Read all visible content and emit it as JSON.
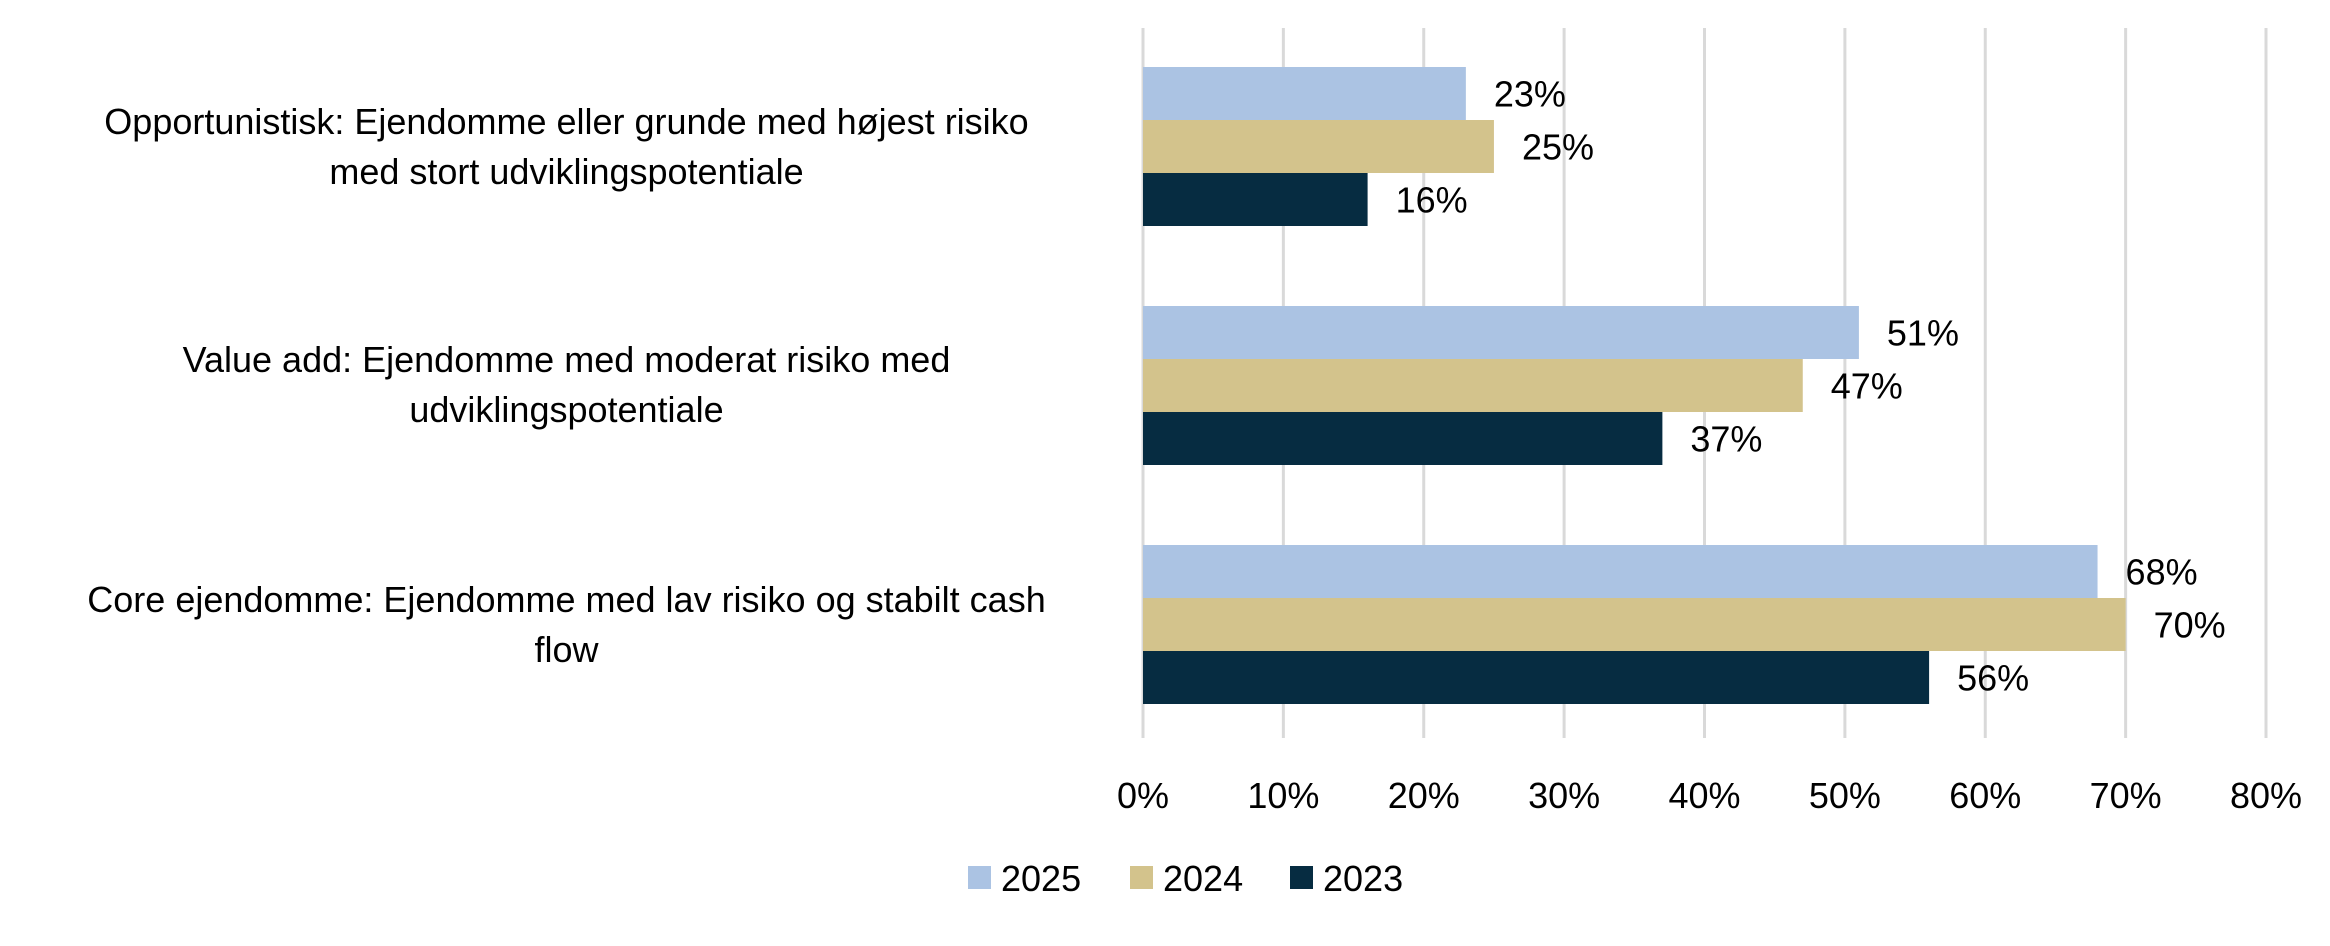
{
  "chart_data": {
    "type": "bar",
    "orientation": "horizontal",
    "categories": [
      [
        "Opportunistisk: Ejendomme eller grunde med højest risiko",
        "med stort udviklingspotentiale"
      ],
      [
        "Value add: Ejendomme med moderat risiko med",
        "udviklingspotentiale"
      ],
      [
        "Core ejendomme: Ejendomme med lav risiko og stabilt cash",
        "flow"
      ]
    ],
    "series": [
      {
        "name": "2025",
        "color": "#abc3e3",
        "values": [
          23,
          51,
          68
        ],
        "labels": [
          "23%",
          "51%",
          "68%"
        ]
      },
      {
        "name": "2024",
        "color": "#d3c38c",
        "values": [
          25,
          47,
          70
        ],
        "labels": [
          "25%",
          "47%",
          "70%"
        ]
      },
      {
        "name": "2023",
        "color": "#062c41",
        "values": [
          16,
          37,
          56
        ],
        "labels": [
          "16%",
          "37%",
          "56%"
        ]
      }
    ],
    "xlim": [
      0,
      80
    ],
    "xticks": [
      0,
      10,
      20,
      30,
      40,
      50,
      60,
      70,
      80
    ],
    "xtick_labels": [
      "0%",
      "10%",
      "20%",
      "30%",
      "40%",
      "50%",
      "60%",
      "70%",
      "80%"
    ],
    "grid": true,
    "legend_position": "bottom-center",
    "title": "",
    "xlabel": "",
    "ylabel": ""
  }
}
